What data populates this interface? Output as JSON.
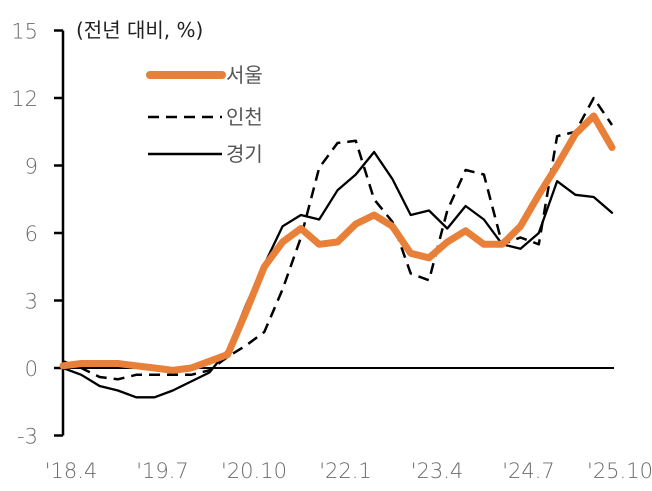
{
  "chart_data": {
    "type": "line",
    "title": "",
    "unit_label": "(전년 대비, %)",
    "xlabel": "",
    "ylabel": "(전년 대비, %)",
    "ylim": [
      -3,
      15
    ],
    "yticks": [
      15,
      12,
      9,
      6,
      3,
      0,
      -3
    ],
    "ytick_labels": [
      "15",
      "12",
      "9",
      "6",
      "3",
      "0",
      "-3"
    ],
    "xtick_labels": [
      "'18.4",
      "'19.7",
      "'20.10",
      "'22.1",
      "'23.4",
      "'24.7",
      "'25.10"
    ],
    "x_months_since_start": [
      0,
      3,
      6,
      9,
      12,
      15,
      18,
      21,
      24,
      27,
      30,
      33,
      36,
      39,
      42,
      45,
      48,
      51,
      54,
      57,
      60,
      63,
      66,
      69,
      72,
      75,
      78,
      81,
      84,
      87,
      90
    ],
    "grid": false,
    "legend_position": "upper-left-inside",
    "series": [
      {
        "name": "서울",
        "style": "solid-thick",
        "color": "#E8803A",
        "values": [
          0.1,
          0.2,
          0.2,
          0.2,
          0.1,
          0.0,
          -0.1,
          0.0,
          0.3,
          0.6,
          2.5,
          4.5,
          5.6,
          6.2,
          5.5,
          5.6,
          6.4,
          6.8,
          6.3,
          5.1,
          4.9,
          5.6,
          6.1,
          5.5,
          5.5,
          6.3,
          7.7,
          9.0,
          10.4,
          11.2,
          9.8
        ]
      },
      {
        "name": "인천",
        "style": "dashed",
        "color": "#000000",
        "values": [
          0.3,
          0.0,
          -0.4,
          -0.5,
          -0.3,
          -0.3,
          -0.3,
          -0.3,
          -0.1,
          0.5,
          1.0,
          1.6,
          3.5,
          5.8,
          8.9,
          10.0,
          10.1,
          7.5,
          6.5,
          4.2,
          3.9,
          7.0,
          8.8,
          8.6,
          5.5,
          5.8,
          5.5,
          10.3,
          10.5,
          12.0,
          10.8
        ]
      },
      {
        "name": "경기",
        "style": "solid-thin",
        "color": "#000000",
        "values": [
          0.0,
          -0.3,
          -0.8,
          -1.0,
          -1.3,
          -1.3,
          -1.0,
          -0.6,
          -0.2,
          0.8,
          2.8,
          4.6,
          6.3,
          6.8,
          6.6,
          7.9,
          8.6,
          9.6,
          8.4,
          6.8,
          7.0,
          6.2,
          7.2,
          6.6,
          5.5,
          5.3,
          6.0,
          8.3,
          7.7,
          7.6,
          6.9
        ]
      }
    ]
  },
  "legend": {
    "items": [
      {
        "label": "서울"
      },
      {
        "label": "인천"
      },
      {
        "label": "경기"
      }
    ]
  },
  "colors": {
    "seoul": "#E8803A",
    "axis": "#000000",
    "tick_text": "#6b6b6b"
  }
}
